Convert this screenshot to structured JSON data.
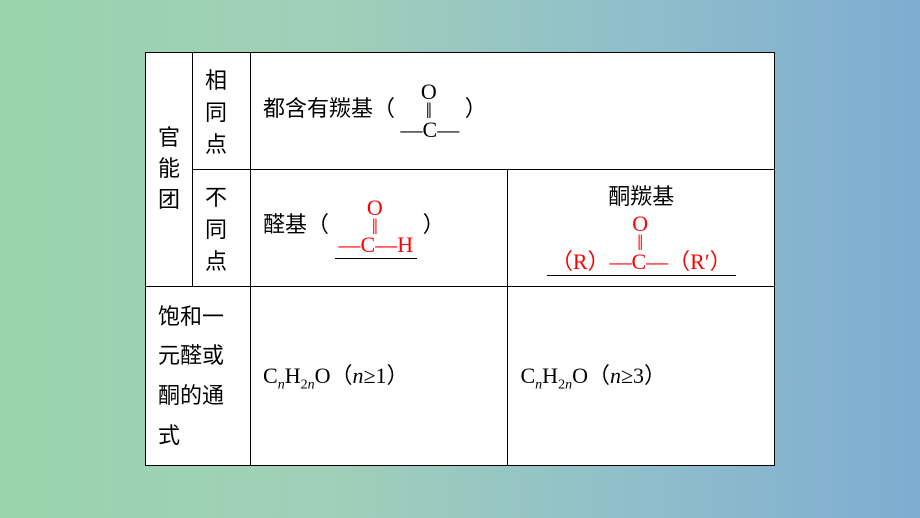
{
  "colors": {
    "background_gradient_start": "#99d4ad",
    "background_gradient_end": "#7eacd1",
    "table_bg": "#ffffff",
    "border": "#000000",
    "text_black": "#000000",
    "text_red": "#ff0000"
  },
  "typography": {
    "base_fontsize": 22,
    "sub_fontsize": 14,
    "line_height_vert": 1.4
  },
  "table": {
    "border_width": 1.5,
    "row1_label": "官能团",
    "row1a_sublabel": "相同点",
    "row1a_content_prefix": "都含有羰基（",
    "row1a_content_suffix": "）",
    "carbonyl_O": "O",
    "carbonyl_dbl": "‖",
    "carbonyl_main": "—C—",
    "row1b_sublabel": "不同点",
    "row1b_left_prefix": "醛基（",
    "row1b_left_suffix": "）",
    "aldehyde_O": "O",
    "aldehyde_dbl": "‖",
    "aldehyde_main": "—C—H",
    "row1b_right_label": "酮羰基",
    "ketone_O": "O",
    "ketone_dbl": "‖",
    "ketone_main": "（R）—C—（R′）",
    "row2_label": "饱和一元醛或酮的通式",
    "row2_left": "CₙH₂ₙO（n≥1）",
    "row2_right": "CₙH₂ₙO（n≥3）"
  }
}
